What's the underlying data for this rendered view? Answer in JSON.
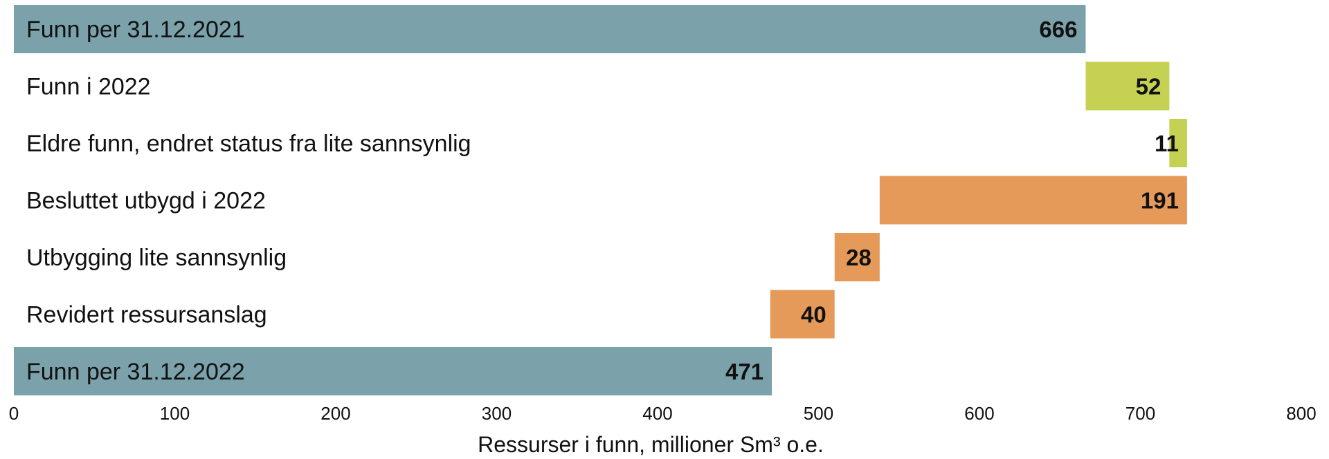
{
  "chart_data": {
    "type": "bar",
    "subtype": "waterfall-horizontal",
    "title": "",
    "xlabel": "Ressurser i funn, millioner Sm³ o.e.",
    "ylabel": "",
    "xlim": [
      0,
      800
    ],
    "xticks": [
      0,
      100,
      200,
      300,
      400,
      500,
      600,
      700,
      800
    ],
    "grid": false,
    "legend": "none",
    "colors": {
      "total": "#7ba2aa",
      "increase": "#c5d152",
      "decrease": "#e59a5a"
    },
    "bars": [
      {
        "label": "Funn per 31.12.2021",
        "value": 666,
        "start": 0,
        "end": 666,
        "kind": "total",
        "value_label": "666"
      },
      {
        "label": "Funn i 2022",
        "value": 52,
        "start": 666,
        "end": 718,
        "kind": "increase",
        "value_label": "52"
      },
      {
        "label": "Eldre funn, endret status fra lite sannsynlig",
        "value": 11,
        "start": 718,
        "end": 729,
        "kind": "increase",
        "value_label": "11"
      },
      {
        "label": "Besluttet utbygd i 2022",
        "value": -191,
        "start": 538,
        "end": 729,
        "kind": "decrease",
        "value_label": "191"
      },
      {
        "label": "Utbygging lite sannsynlig",
        "value": -28,
        "start": 510,
        "end": 538,
        "kind": "decrease",
        "value_label": "28"
      },
      {
        "label": "Revidert ressursanslag",
        "value": -40,
        "start": 470,
        "end": 510,
        "kind": "decrease",
        "value_label": "40"
      },
      {
        "label": "Funn per 31.12.2022",
        "value": 471,
        "start": 0,
        "end": 471,
        "kind": "total",
        "value_label": "471"
      }
    ]
  }
}
